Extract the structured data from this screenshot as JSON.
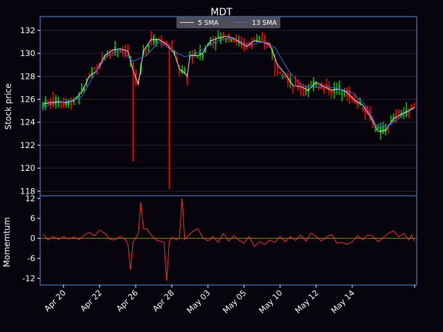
{
  "chart_data": [
    {
      "type": "candlestick",
      "title": "MDT",
      "ylabel": "Stock price",
      "ylim": [
        117.6,
        133.2
      ],
      "yticks": [
        118,
        120,
        122,
        124,
        126,
        128,
        130,
        132
      ],
      "legend": {
        "placement": "top-center",
        "entries": [
          "5 SMA",
          "13 SMA"
        ]
      },
      "colors": {
        "up": "#00c800",
        "down": "#ff0000",
        "sma5": "#e6e6e6",
        "sma13": "#4169e1",
        "grid": "#2a2a3a",
        "frame": "#5a8fe6"
      },
      "series": [
        {
          "name": "5 SMA",
          "values": [
            [
              0,
              125.6
            ],
            [
              3,
              125.7
            ],
            [
              6,
              125.8
            ],
            [
              9,
              125.7
            ],
            [
              12,
              125.9
            ],
            [
              15,
              126.6
            ],
            [
              18,
              128.0
            ],
            [
              21,
              128.5
            ],
            [
              24,
              129.8
            ],
            [
              27,
              130.3
            ],
            [
              30,
              130.4
            ],
            [
              33,
              130.2
            ],
            [
              35,
              128.5
            ],
            [
              37,
              127.3
            ],
            [
              39,
              130.2
            ],
            [
              42,
              131.2
            ],
            [
              45,
              131.2
            ],
            [
              48,
              130.8
            ],
            [
              51,
              130.0
            ],
            [
              53,
              128.6
            ],
            [
              55,
              128.3
            ],
            [
              56,
              128.0
            ],
            [
              57,
              129.8
            ],
            [
              60,
              129.8
            ],
            [
              62,
              130.0
            ],
            [
              65,
              131.1
            ],
            [
              68,
              131.3
            ],
            [
              71,
              131.5
            ],
            [
              74,
              131.3
            ],
            [
              76,
              131.0
            ],
            [
              79,
              130.6
            ],
            [
              82,
              131.1
            ],
            [
              85,
              131.0
            ],
            [
              88,
              130.8
            ],
            [
              91,
              129.0
            ],
            [
              94,
              128.2
            ],
            [
              97,
              127.2
            ],
            [
              100,
              127.1
            ],
            [
              103,
              126.8
            ],
            [
              106,
              127.5
            ],
            [
              109,
              127.1
            ],
            [
              112,
              126.8
            ],
            [
              115,
              126.9
            ],
            [
              118,
              126.6
            ],
            [
              121,
              125.9
            ],
            [
              124,
              125.5
            ],
            [
              127,
              124.5
            ],
            [
              130,
              123.2
            ],
            [
              133,
              123.3
            ],
            [
              136,
              124.3
            ],
            [
              139,
              124.7
            ],
            [
              142,
              125.0
            ],
            [
              144,
              125.3
            ]
          ]
        },
        {
          "name": "13 SMA",
          "values": [
            [
              0,
              125.3
            ],
            [
              5,
              125.7
            ],
            [
              10,
              125.8
            ],
            [
              15,
              126.2
            ],
            [
              20,
              128.2
            ],
            [
              25,
              129.8
            ],
            [
              30,
              130.3
            ],
            [
              35,
              129.3
            ],
            [
              40,
              129.8
            ],
            [
              45,
              131.0
            ],
            [
              50,
              130.3
            ],
            [
              55,
              129.7
            ],
            [
              60,
              130.0
            ],
            [
              65,
              130.8
            ],
            [
              70,
              131.3
            ],
            [
              75,
              131.2
            ],
            [
              80,
              130.7
            ],
            [
              85,
              131.0
            ],
            [
              90,
              130.5
            ],
            [
              95,
              128.6
            ],
            [
              100,
              127.2
            ],
            [
              105,
              127.0
            ],
            [
              110,
              127.1
            ],
            [
              115,
              126.9
            ],
            [
              120,
              126.6
            ],
            [
              125,
              125.5
            ],
            [
              130,
              123.5
            ],
            [
              135,
              123.8
            ],
            [
              140,
              124.7
            ],
            [
              144,
              125.2
            ]
          ]
        }
      ],
      "anomalies": [
        {
          "index": 35,
          "low": 120.6,
          "color": "#ff0000"
        },
        {
          "index": 49,
          "low": 118.2,
          "color": "#ff0000"
        },
        {
          "index": 90,
          "low": 128.0,
          "color": "#ff0000"
        }
      ]
    },
    {
      "type": "line",
      "ylabel": "Momemtum",
      "ylim": [
        -14,
        12.8
      ],
      "yticks": [
        12,
        6,
        0,
        -6,
        -12
      ],
      "xticks": [
        "Apr 20",
        "Apr 22",
        "Apr 26",
        "Apr 28",
        "May 03",
        "May 05",
        "May 10",
        "May 12",
        "May 14"
      ],
      "xtick_positions": [
        8,
        22,
        36,
        50,
        64,
        78,
        92,
        106,
        120
      ],
      "colors": {
        "momentum": "#ff3030",
        "zero": "#b8b800"
      },
      "series": [
        {
          "name": "",
          "values": [
            [
              0,
              1.2
            ],
            [
              2,
              -0.5
            ],
            [
              4,
              0.6
            ],
            [
              6,
              -0.3
            ],
            [
              8,
              0.5
            ],
            [
              10,
              -0.2
            ],
            [
              12,
              0.4
            ],
            [
              14,
              -0.4
            ],
            [
              16,
              1.0
            ],
            [
              18,
              1.8
            ],
            [
              20,
              0.8
            ],
            [
              22,
              2.5
            ],
            [
              24,
              1.5
            ],
            [
              26,
              -0.3
            ],
            [
              28,
              -0.5
            ],
            [
              30,
              0.6
            ],
            [
              32,
              -0.4
            ],
            [
              33,
              -2.0
            ],
            [
              34,
              -9.5
            ],
            [
              35,
              -1.0
            ],
            [
              37,
              1.5
            ],
            [
              38,
              11.0
            ],
            [
              39,
              2.8
            ],
            [
              40,
              3.0
            ],
            [
              42,
              1.0
            ],
            [
              44,
              -0.5
            ],
            [
              46,
              -1.0
            ],
            [
              47,
              -1.2
            ],
            [
              48,
              -12.8
            ],
            [
              49,
              -1.0
            ],
            [
              50,
              0.3
            ],
            [
              52,
              -0.5
            ],
            [
              53,
              0.5
            ],
            [
              54,
              12.0
            ],
            [
              55,
              -0.3
            ],
            [
              56,
              0.5
            ],
            [
              58,
              2.0
            ],
            [
              60,
              3.0
            ],
            [
              62,
              0.2
            ],
            [
              64,
              -0.8
            ],
            [
              66,
              0.5
            ],
            [
              68,
              -1.2
            ],
            [
              70,
              1.5
            ],
            [
              72,
              -0.8
            ],
            [
              74,
              0.8
            ],
            [
              76,
              -0.5
            ],
            [
              78,
              -1.5
            ],
            [
              80,
              0.5
            ],
            [
              82,
              -2.5
            ],
            [
              84,
              -1.0
            ],
            [
              86,
              -1.8
            ],
            [
              88,
              -0.5
            ],
            [
              90,
              -1.2
            ],
            [
              92,
              0.6
            ],
            [
              94,
              -1.0
            ],
            [
              96,
              0.5
            ],
            [
              98,
              -0.6
            ],
            [
              100,
              1.0
            ],
            [
              102,
              -0.8
            ],
            [
              104,
              1.6
            ],
            [
              106,
              0.5
            ],
            [
              108,
              -0.8
            ],
            [
              110,
              0.4
            ],
            [
              112,
              1.2
            ],
            [
              114,
              -1.5
            ],
            [
              116,
              -1.2
            ],
            [
              118,
              -1.8
            ],
            [
              120,
              -1.0
            ],
            [
              122,
              0.8
            ],
            [
              124,
              -0.4
            ],
            [
              126,
              1.0
            ],
            [
              128,
              0.6
            ],
            [
              130,
              -1.0
            ],
            [
              132,
              0.2
            ],
            [
              134,
              1.5
            ],
            [
              136,
              2.3
            ],
            [
              138,
              0.5
            ],
            [
              140,
              1.5
            ],
            [
              142,
              -0.5
            ],
            [
              143,
              1.0
            ],
            [
              144,
              -0.8
            ]
          ]
        }
      ]
    }
  ]
}
